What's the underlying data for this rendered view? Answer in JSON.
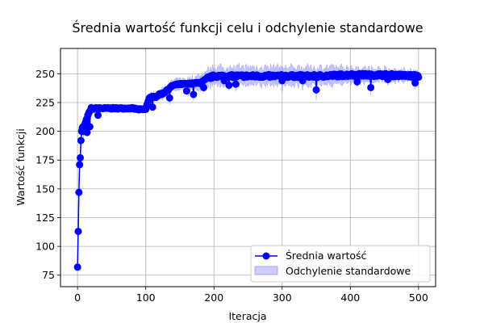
{
  "chart_data": {
    "type": "line",
    "title": "Średnia wartość funkcji celu i odchylenie standardowe",
    "xlabel": "Iteracja",
    "ylabel": "Wartość funkcji",
    "xlim": [
      -25,
      525
    ],
    "ylim": [
      65,
      272
    ],
    "xticks": [
      0,
      100,
      200,
      300,
      400,
      500
    ],
    "yticks": [
      75,
      100,
      125,
      150,
      175,
      200,
      225,
      250
    ],
    "grid": true,
    "legend_position": "lower-right",
    "colors": {
      "mean": "#0000ff",
      "band": "#8080ff"
    },
    "series": [
      {
        "name": "Średnia wartość",
        "kind": "line-markers"
      },
      {
        "name": "Odchylenie standardowe",
        "kind": "band"
      }
    ],
    "anchors": {
      "x": [
        0,
        1,
        2,
        3,
        4,
        5,
        6,
        7,
        8,
        9,
        10,
        12,
        14,
        16,
        18,
        20,
        22,
        25,
        30,
        40,
        60,
        80,
        90,
        100,
        105,
        110,
        115,
        120,
        125,
        130,
        140,
        150,
        160,
        170,
        180,
        190,
        195,
        200,
        220,
        250,
        300,
        350,
        400,
        450,
        500
      ],
      "mean": [
        82,
        113,
        147,
        171,
        177,
        192,
        200,
        203,
        204,
        200,
        205,
        208,
        213,
        215,
        218,
        220,
        219,
        220,
        220,
        220,
        220,
        220,
        219,
        219,
        229,
        230,
        230,
        232,
        233,
        235,
        240,
        241,
        241,
        242,
        242,
        246,
        247,
        248,
        248,
        248,
        248,
        248,
        249,
        249,
        248
      ],
      "std": [
        2,
        3,
        3,
        3,
        3,
        4,
        5,
        5,
        5,
        5,
        4,
        4,
        4,
        4,
        4,
        3,
        3,
        2,
        2,
        2,
        2,
        2,
        2,
        3,
        3,
        3,
        3,
        3,
        4,
        4,
        4,
        4,
        4,
        5,
        6,
        6,
        7,
        7,
        7,
        7,
        7,
        7,
        6,
        5,
        4
      ]
    },
    "dips": [
      [
        14,
        199
      ],
      [
        18,
        204
      ],
      [
        30,
        214
      ],
      [
        110,
        221
      ],
      [
        135,
        229
      ],
      [
        160,
        235
      ],
      [
        170,
        232
      ],
      [
        185,
        238
      ],
      [
        215,
        244
      ],
      [
        222,
        240
      ],
      [
        232,
        241
      ],
      [
        300,
        244
      ],
      [
        330,
        244
      ],
      [
        350,
        236
      ],
      [
        410,
        243
      ],
      [
        430,
        238
      ],
      [
        455,
        245
      ],
      [
        495,
        242
      ]
    ]
  }
}
